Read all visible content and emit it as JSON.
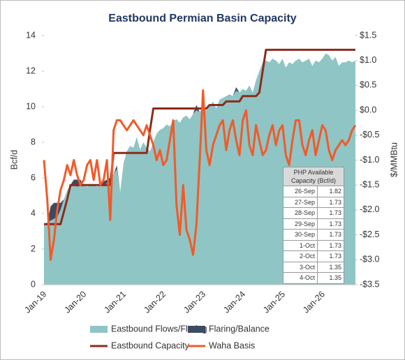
{
  "chart_data": {
    "type": "combo",
    "title": "Eastbound Permian Basin Capacity",
    "y_label": "Bcf/d",
    "y2_label": "$/MMBtu",
    "categories": [
      "Jan-19",
      null,
      null,
      null,
      null,
      null,
      null,
      null,
      null,
      null,
      null,
      null,
      "Jan-20",
      null,
      null,
      null,
      null,
      null,
      null,
      null,
      null,
      null,
      null,
      null,
      "Jan-21",
      null,
      null,
      null,
      null,
      null,
      null,
      null,
      null,
      null,
      null,
      null,
      "Jan-22",
      null,
      null,
      null,
      null,
      null,
      null,
      null,
      null,
      null,
      null,
      null,
      "Jan-23",
      null,
      null,
      null,
      null,
      null,
      null,
      null,
      null,
      null,
      null,
      null,
      "Jan-24",
      null,
      null,
      null,
      null,
      null,
      null,
      null,
      null,
      null,
      null,
      null,
      "Jan-25",
      null,
      null,
      null,
      null,
      null,
      null,
      null,
      null,
      null,
      null,
      null,
      "Jan-26",
      null,
      null,
      null,
      null,
      null,
      null,
      null,
      null,
      null,
      null
    ],
    "ylim": [
      0,
      14
    ],
    "yticks": [
      0,
      2,
      4,
      6,
      8,
      10,
      12,
      14
    ],
    "y2lim": [
      -3.5,
      1.5
    ],
    "y2ticks": [
      {
        "value": 1.5,
        "label": "$1.5"
      },
      {
        "value": 1.0,
        "label": "$1.0"
      },
      {
        "value": 0.5,
        "label": "$0.5"
      },
      {
        "value": 0.0,
        "label": "$0.0"
      },
      {
        "value": -0.5,
        "label": "-$0.5"
      },
      {
        "value": -1.0,
        "label": "-$1.0"
      },
      {
        "value": -1.5,
        "label": "-$1.5"
      },
      {
        "value": -2.0,
        "label": "-$2.0"
      },
      {
        "value": -2.5,
        "label": "-$2.5"
      },
      {
        "value": -3.0,
        "label": "-$3.0"
      },
      {
        "value": -3.5,
        "label": "-$3.5"
      }
    ],
    "legend": "bottom",
    "series": [
      {
        "name": "Eastbound Flows/Flaring",
        "kind": "area",
        "color": "#8fc5c5",
        "values": [
          3.4,
          3.5,
          3.6,
          3.7,
          3.8,
          4.2,
          4.8,
          5.3,
          5.6,
          5.6,
          5.5,
          5.6,
          5.6,
          5.5,
          5.6,
          5.6,
          5.5,
          5.6,
          5.6,
          5.7,
          5.8,
          6.2,
          6.5,
          5.2,
          6.8,
          7.5,
          7.8,
          7.7,
          8.3,
          7.6,
          8.0,
          7.7,
          7.5,
          8.0,
          8.5,
          8.7,
          8.8,
          9.0,
          8.9,
          9.2,
          9.3,
          9.1,
          9.4,
          9.5,
          9.3,
          9.6,
          9.8,
          9.7,
          10.0,
          9.8,
          10.0,
          10.3,
          9.9,
          10.4,
          10.5,
          10.6,
          10.7,
          10.6,
          10.9,
          10.8,
          11.0,
          10.9,
          11.2,
          10.8,
          11.5,
          12.0,
          12.5,
          12.6,
          12.5,
          12.7,
          12.6,
          12.4,
          12.7,
          12.2,
          12.5,
          12.4,
          12.6,
          12.7,
          12.5,
          12.6,
          12.7,
          12.3,
          12.6,
          12.5,
          12.7,
          13.0,
          12.9,
          12.6,
          12.8,
          12.3,
          12.5,
          12.5,
          12.6,
          12.5,
          12.6
        ]
      },
      {
        "name": "Flaring/Balance",
        "kind": "stacked-area",
        "color": "#3c4a62",
        "values": [
          0,
          0,
          0.8,
          0.9,
          0.8,
          0.4,
          0,
          0,
          0,
          0.3,
          0.4,
          0.3,
          0,
          0,
          0,
          0,
          0,
          0,
          0.2,
          0.2,
          0.2,
          0,
          0.2,
          0,
          0,
          0,
          0,
          0,
          0,
          0,
          0,
          0,
          0,
          0,
          0,
          0,
          0,
          0,
          0,
          0,
          0,
          0,
          0,
          0,
          0,
          0,
          0.3,
          0,
          0,
          0,
          0,
          0,
          0,
          0,
          0,
          0,
          0,
          0,
          0.2,
          0,
          0,
          0,
          0,
          0,
          0,
          0,
          0,
          0,
          0,
          0,
          0,
          0,
          0,
          0,
          0,
          0,
          0,
          0,
          0,
          0,
          0,
          0,
          0,
          0,
          0,
          0,
          0,
          0,
          0,
          0,
          0,
          0,
          0,
          0,
          0
        ]
      },
      {
        "name": "Eastbound Capacity",
        "kind": "line",
        "color": "#8b2c1c",
        "values": [
          3.4,
          3.4,
          3.4,
          3.4,
          3.4,
          3.4,
          4.1,
          4.8,
          5.6,
          5.6,
          5.6,
          5.6,
          5.6,
          5.6,
          5.6,
          5.6,
          5.6,
          5.6,
          5.6,
          5.6,
          5.6,
          7.4,
          7.4,
          7.4,
          7.4,
          7.4,
          7.4,
          7.4,
          7.4,
          7.4,
          7.4,
          7.4,
          8.7,
          9.9,
          9.9,
          9.9,
          9.9,
          9.9,
          9.9,
          9.9,
          9.9,
          9.9,
          9.9,
          9.9,
          9.9,
          9.9,
          9.9,
          9.9,
          9.9,
          9.9,
          10.1,
          10.1,
          10.1,
          10.1,
          10.1,
          10.3,
          10.3,
          10.3,
          10.3,
          10.3,
          10.6,
          10.6,
          10.6,
          10.6,
          10.6,
          10.8,
          12.0,
          13.2,
          13.2,
          13.2,
          13.2,
          13.2,
          13.2,
          13.2,
          13.2,
          13.2,
          13.2,
          13.2,
          13.2,
          13.2,
          13.2,
          13.2,
          13.2,
          13.2,
          13.2,
          13.2,
          13.2,
          13.2,
          13.2,
          13.2,
          13.2,
          13.2,
          13.2,
          13.2,
          13.2
        ]
      },
      {
        "name": "Waha Basis",
        "kind": "line",
        "axis": "y2",
        "color": "#f15a29",
        "values": [
          -1.0,
          -1.8,
          -3.0,
          -2.6,
          -2.0,
          -1.6,
          -1.4,
          -1.1,
          -1.3,
          -1.0,
          -1.3,
          -1.5,
          -1.4,
          -1.1,
          -1.0,
          -1.4,
          -1.0,
          -1.5,
          -1.4,
          -1.0,
          -2.2,
          -0.4,
          -0.2,
          -0.2,
          -0.3,
          -0.4,
          -0.3,
          -0.2,
          -0.3,
          -0.4,
          -0.5,
          -0.3,
          -0.5,
          -0.7,
          -1.0,
          -0.8,
          -1.1,
          -1.0,
          -0.6,
          -0.2,
          -1.9,
          -2.5,
          -1.5,
          -2.4,
          -2.6,
          -2.9,
          -2.3,
          -1.0,
          0.4,
          -0.8,
          -1.1,
          -0.7,
          -0.5,
          -0.3,
          -0.2,
          -0.8,
          -0.4,
          -0.2,
          -0.6,
          -0.9,
          -0.2,
          0.0,
          -0.7,
          -0.9,
          -0.3,
          -0.6,
          -0.9,
          -0.8,
          -0.5,
          -0.3,
          -0.7,
          -0.4,
          -0.3,
          -0.9,
          -1.1,
          -0.6,
          -0.2,
          -0.2,
          -0.7,
          -0.9,
          -0.6,
          -0.4,
          -0.9,
          -0.6,
          -0.3,
          -0.4,
          -0.8,
          -1.0,
          -0.8,
          -0.7,
          -0.6,
          -0.7,
          -0.6,
          -0.4,
          -0.3
        ]
      }
    ],
    "table": {
      "header": "PHP Available Capacity (Bcf/d)",
      "rows": [
        [
          "26-Sep",
          1.82
        ],
        [
          "27-Sep",
          1.73
        ],
        [
          "28-Sep",
          1.73
        ],
        [
          "29-Sep",
          1.73
        ],
        [
          "30-Sep",
          1.73
        ],
        [
          "1-Oct",
          1.73
        ],
        [
          "2-Oct",
          1.73
        ],
        [
          "3-Oct",
          1.35
        ],
        [
          "4-Oct",
          1.35
        ]
      ]
    }
  }
}
